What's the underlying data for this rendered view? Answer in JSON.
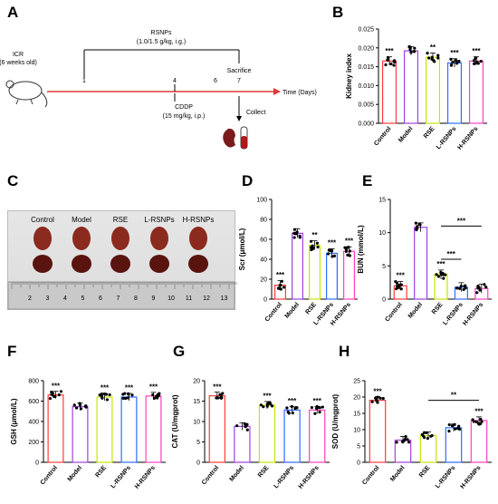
{
  "panels": {
    "A": "A",
    "B": "B",
    "C": "C",
    "D": "D",
    "E": "E",
    "F": "F",
    "G": "G",
    "H": "H"
  },
  "schematic": {
    "mouse_label": "ICR\n(6 weeks old)",
    "rsnps_label": "RSNPs",
    "rsnps_dose": "(1.0/1.5 g/kg, i.g.)",
    "sacrifice": "Sacrifice",
    "days": [
      "1",
      "4",
      "6",
      "7"
    ],
    "time_label": "Time  (Days)",
    "cddp_label": "CDDP",
    "cddp_dose": "(15 mg/kg, i.p.)",
    "collect": "Collect"
  },
  "photo": {
    "group_labels": [
      "Control",
      "Model",
      "RSE",
      "L-RSNPs",
      "H-RSNPs"
    ],
    "ruler_numbers": [
      "2",
      "3",
      "4",
      "5",
      "6",
      "7",
      "8",
      "9",
      "10",
      "11",
      "12",
      "13"
    ]
  },
  "colors": {
    "control": "#ff3b3b",
    "model": "#a040e0",
    "rse": "#c8e600",
    "l_rsnps": "#2f6cff",
    "h_rsnps": "#ff40c0",
    "axis": "#000000",
    "timeline": "#e03a3a"
  },
  "chart_data": [
    {
      "id": "B",
      "type": "bar",
      "categories": [
        "Control",
        "Model",
        "RSE",
        "L-RSNPs",
        "H-RSNPs"
      ],
      "values": [
        0.0165,
        0.0192,
        0.0175,
        0.016,
        0.0165
      ],
      "sig": [
        "***",
        "",
        "**",
        "***",
        "***"
      ],
      "ylabel": "Kidney index",
      "ylim": [
        0,
        0.025
      ],
      "yticks": [
        "0.000",
        "0.005",
        "0.010",
        "0.015",
        "0.020",
        "0.025"
      ],
      "tick_values": [
        0,
        0.005,
        0.01,
        0.015,
        0.02,
        0.025
      ]
    },
    {
      "id": "D",
      "type": "bar",
      "categories": [
        "Control",
        "Model",
        "RSE",
        "L-RSNPs",
        "H-RSNPs"
      ],
      "values": [
        14,
        66,
        54,
        46,
        48
      ],
      "sig": [
        "***",
        "",
        "**",
        "***",
        "***"
      ],
      "ylabel": "Scr (μmol/L)",
      "ylim": [
        0,
        100
      ],
      "yticks": [
        "0",
        "20",
        "40",
        "60",
        "80",
        "100"
      ],
      "tick_values": [
        0,
        20,
        40,
        60,
        80,
        100
      ]
    },
    {
      "id": "E",
      "type": "bar",
      "categories": [
        "Control",
        "Model",
        "RSE",
        "L-RSNPs",
        "H-RSNPs"
      ],
      "values": [
        2.0,
        10.8,
        3.7,
        1.8,
        1.6
      ],
      "sig": [
        "***",
        "",
        "***",
        "",
        ""
      ],
      "brackets": [
        {
          "from": 2,
          "to": 3,
          "label": "***"
        },
        {
          "from": 2,
          "to": 4,
          "label": "***"
        }
      ],
      "ylabel": "BUN (mmol/L)",
      "ylim": [
        0,
        15
      ],
      "yticks": [
        "0",
        "5",
        "10",
        "15"
      ],
      "tick_values": [
        0,
        5,
        10,
        15
      ]
    },
    {
      "id": "F",
      "type": "bar",
      "categories": [
        "Control",
        "Model",
        "RSE",
        "L-RSNPs",
        "H-RSNPs"
      ],
      "values": [
        660,
        545,
        640,
        640,
        650
      ],
      "sig": [
        "***",
        "",
        "***",
        "***",
        "***"
      ],
      "ylabel": "GSH (μmol/L)",
      "ylim": [
        0,
        800
      ],
      "yticks": [
        "0",
        "200",
        "400",
        "600",
        "800"
      ],
      "tick_values": [
        0,
        200,
        400,
        600,
        800
      ]
    },
    {
      "id": "G",
      "type": "bar",
      "categories": [
        "Control",
        "Model",
        "RSE",
        "L-RSNPs",
        "H-RSNPs"
      ],
      "values": [
        16.3,
        8.8,
        14.0,
        12.8,
        12.8
      ],
      "sig": [
        "***",
        "",
        "***",
        "***",
        "***"
      ],
      "ylabel": "CAT (U/mgprot)",
      "ylim": [
        0,
        20
      ],
      "yticks": [
        "0",
        "5",
        "10",
        "15",
        "20"
      ],
      "tick_values": [
        0,
        5,
        10,
        15,
        20
      ]
    },
    {
      "id": "H",
      "type": "bar",
      "categories": [
        "Control",
        "Model",
        "RSE",
        "L-RSNPs",
        "H-RSNPs"
      ],
      "values": [
        19.0,
        6.8,
        8.2,
        10.6,
        12.8
      ],
      "sig": [
        "***",
        "",
        "",
        "",
        "***"
      ],
      "brackets": [
        {
          "from": 2,
          "to": 4,
          "label": "**"
        }
      ],
      "ylabel": "SOD (U/mgprot)",
      "ylim": [
        0,
        25
      ],
      "yticks": [
        "0",
        "5",
        "10",
        "15",
        "20",
        "25"
      ],
      "tick_values": [
        0,
        5,
        10,
        15,
        20,
        25
      ]
    }
  ]
}
